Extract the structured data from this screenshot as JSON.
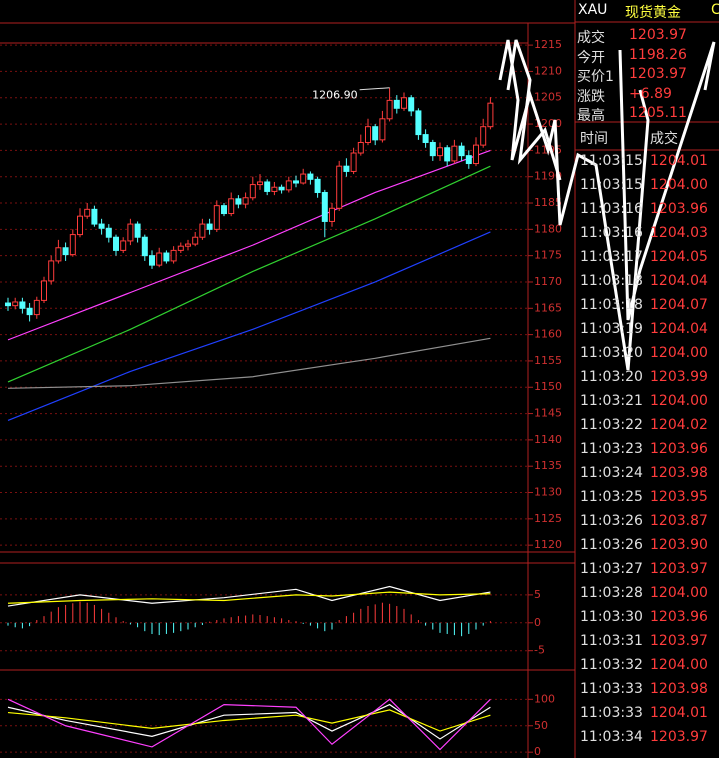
{
  "chart_data": [
    {
      "type": "candlestick",
      "up_color": "#ff3c3c",
      "down_color": "#54ffff",
      "ylim": [
        1118.7,
        1219.2
      ],
      "yticks": [
        1120,
        1125,
        1130,
        1135,
        1140,
        1145,
        1150,
        1155,
        1160,
        1165,
        1170,
        1175,
        1180,
        1185,
        1190,
        1195,
        1200,
        1205,
        1210,
        1215
      ],
      "open": [
        1166.0,
        1165.5,
        1166.2,
        1165.0,
        1163.8,
        1166.5,
        1170.2,
        1174.0,
        1176.5,
        1175.2,
        1179.0,
        1182.5,
        1183.8,
        1181.0,
        1180.2,
        1178.5,
        1176.0,
        1177.8,
        1181.0,
        1178.5,
        1175.0,
        1173.2,
        1175.5,
        1174.0,
        1176.0,
        1176.8,
        1177.2,
        1178.5,
        1181.0,
        1180.0,
        1184.5,
        1183.0,
        1185.8,
        1184.8,
        1186.0,
        1188.5,
        1189.0,
        1187.2,
        1188.0,
        1187.5,
        1189.2,
        1188.8,
        1190.5,
        1189.5,
        1187.0,
        1181.5,
        1184.0,
        1192.0,
        1191.0,
        1194.5,
        1196.5,
        1199.5,
        1197.0,
        1201.0,
        1204.5,
        1203.0,
        1205.0,
        1202.5,
        1198.0,
        1196.5,
        1194.0,
        1195.5,
        1193.0,
        1195.8,
        1194.0,
        1192.5,
        1196.0,
        1199.5
      ],
      "high": [
        1167.0,
        1167.0,
        1167.0,
        1166.0,
        1167.2,
        1171.0,
        1175.0,
        1178.0,
        1177.5,
        1180.0,
        1184.0,
        1185.0,
        1184.5,
        1182.0,
        1181.0,
        1179.0,
        1178.5,
        1182.0,
        1181.5,
        1179.0,
        1176.0,
        1176.5,
        1176.0,
        1176.8,
        1177.5,
        1178.0,
        1179.5,
        1182.0,
        1182.0,
        1185.5,
        1185.0,
        1187.0,
        1186.5,
        1187.0,
        1190.0,
        1190.5,
        1189.5,
        1189.0,
        1188.5,
        1190.0,
        1190.2,
        1191.5,
        1191.0,
        1190.0,
        1187.5,
        1185.0,
        1193.0,
        1193.5,
        1195.5,
        1198.0,
        1201.0,
        1200.0,
        1202.5,
        1206.9,
        1205.5,
        1206.0,
        1205.5,
        1203.0,
        1199.0,
        1197.0,
        1196.5,
        1196.0,
        1197.0,
        1196.5,
        1195.0,
        1197.5,
        1201.0,
        1205.11
      ],
      "low": [
        1164.5,
        1164.8,
        1164.0,
        1162.5,
        1163.0,
        1166.0,
        1169.5,
        1173.5,
        1174.0,
        1174.8,
        1178.5,
        1182.0,
        1180.5,
        1179.0,
        1177.5,
        1175.0,
        1175.5,
        1177.0,
        1177.5,
        1174.0,
        1172.5,
        1172.8,
        1173.5,
        1173.5,
        1175.5,
        1176.0,
        1176.8,
        1178.0,
        1179.0,
        1179.5,
        1182.5,
        1182.5,
        1184.0,
        1184.0,
        1185.5,
        1187.5,
        1186.5,
        1186.5,
        1186.8,
        1187.0,
        1188.0,
        1188.5,
        1188.5,
        1186.0,
        1178.5,
        1180.5,
        1183.5,
        1190.0,
        1190.5,
        1194.0,
        1196.0,
        1196.0,
        1196.5,
        1200.5,
        1202.0,
        1202.5,
        1201.5,
        1197.0,
        1195.5,
        1193.0,
        1193.0,
        1192.0,
        1192.5,
        1193.0,
        1191.5,
        1192.0,
        1195.5,
        1199.0
      ],
      "close": [
        1165.5,
        1166.2,
        1165.0,
        1163.8,
        1166.5,
        1170.2,
        1174.0,
        1176.5,
        1175.2,
        1179.0,
        1182.5,
        1183.8,
        1181.0,
        1180.2,
        1178.5,
        1176.0,
        1177.8,
        1181.0,
        1178.5,
        1175.0,
        1173.2,
        1175.5,
        1174.0,
        1176.0,
        1176.8,
        1177.2,
        1178.5,
        1181.0,
        1180.0,
        1184.5,
        1183.0,
        1185.8,
        1184.8,
        1186.0,
        1188.5,
        1189.0,
        1187.2,
        1188.0,
        1187.5,
        1189.2,
        1188.8,
        1190.5,
        1189.5,
        1187.0,
        1181.5,
        1184.0,
        1192.0,
        1191.0,
        1194.5,
        1196.5,
        1199.5,
        1197.0,
        1201.0,
        1204.5,
        1203.0,
        1205.0,
        1202.5,
        1198.0,
        1196.5,
        1194.0,
        1195.5,
        1193.0,
        1195.8,
        1194.0,
        1192.5,
        1196.0,
        1199.5,
        1203.97
      ],
      "series": [
        {
          "color": "#ff40ff",
          "x": [
            0,
            17,
            34,
            51,
            67
          ],
          "values": [
            1159,
            1168,
            1177,
            1187,
            1195
          ]
        },
        {
          "color": "#30d030",
          "x": [
            0,
            17,
            34,
            51,
            67
          ],
          "values": [
            1151,
            1161,
            1172,
            1182,
            1192
          ]
        },
        {
          "color": "#2040ff",
          "x": [
            0,
            17,
            34,
            51,
            67
          ],
          "values": [
            1143.7,
            1153,
            1161,
            1170,
            1179.5
          ]
        },
        {
          "color": "#909090",
          "x": [
            0,
            17,
            34,
            51,
            67
          ],
          "values": [
            1149.8,
            1150.3,
            1152,
            1155.5,
            1159.3
          ]
        }
      ],
      "annotation": {
        "index": 53,
        "value": 1206.9,
        "label": "1206.90"
      }
    },
    {
      "type": "macd",
      "ylim": [
        -8.1,
        9.1
      ],
      "yticks": [
        5,
        0,
        -5
      ],
      "histogram": [
        -0.5,
        -0.8,
        -1,
        -0.6,
        0.5,
        1.2,
        2,
        2.8,
        3.2,
        3.5,
        3.8,
        3.6,
        3.2,
        2.5,
        1.8,
        1,
        0.3,
        -0.3,
        -0.8,
        -1.5,
        -2,
        -2.2,
        -2,
        -1.8,
        -1.5,
        -1.2,
        -0.8,
        -0.4,
        0.2,
        0.5,
        0.8,
        1,
        1.2,
        1.3,
        1.5,
        1.4,
        1.2,
        1,
        0.8,
        0.5,
        0.3,
        -0.2,
        -0.5,
        -1,
        -1.5,
        -1.2,
        0.5,
        1.2,
        1.8,
        2.5,
        3,
        3.3,
        3.6,
        3.4,
        3,
        2.5,
        1.5,
        0.5,
        -0.5,
        -1.2,
        -1.8,
        -2,
        -2.2,
        -2.4,
        -2,
        -1.2,
        -0.5,
        0.3
      ],
      "series": [
        {
          "color": "#ffffff",
          "x": [
            0,
            10,
            20,
            30,
            40,
            45,
            53,
            60,
            67
          ],
          "values": [
            3,
            5,
            3.5,
            4.5,
            6,
            4,
            6.5,
            4,
            5.5
          ]
        },
        {
          "color": "#ffff00",
          "x": [
            0,
            10,
            20,
            30,
            40,
            45,
            53,
            60,
            67
          ],
          "values": [
            3.5,
            4,
            4.3,
            4,
            5,
            4.8,
            5.5,
            5,
            5.2
          ]
        }
      ]
    },
    {
      "type": "line",
      "ylim": [
        -11,
        146
      ],
      "yticks": [
        100,
        50,
        0
      ],
      "series": [
        {
          "color": "#ffffff",
          "x": [
            0,
            8,
            20,
            30,
            40,
            45,
            53,
            60,
            67
          ],
          "values": [
            85,
            60,
            30,
            70,
            75,
            40,
            90,
            25,
            85
          ]
        },
        {
          "color": "#ffff00",
          "x": [
            0,
            8,
            20,
            30,
            40,
            45,
            53,
            60,
            67
          ],
          "values": [
            75,
            65,
            45,
            60,
            70,
            55,
            80,
            40,
            70
          ]
        },
        {
          "color": "#ff40ff",
          "x": [
            0,
            8,
            20,
            30,
            40,
            45,
            53,
            60,
            67
          ],
          "values": [
            100,
            50,
            10,
            90,
            85,
            15,
            100,
            5,
            100
          ]
        }
      ]
    }
  ],
  "quote_panel": {
    "symbol": "XAU",
    "name": "现货黄金",
    "extra": "C",
    "fields": [
      [
        "成交",
        "1203.97"
      ],
      [
        "今开",
        "1198.26"
      ],
      [
        "买价1",
        "1203.97"
      ],
      [
        "涨跌",
        "+6.89"
      ],
      [
        "最高",
        "1205.11"
      ]
    ],
    "ticks_header": [
      "时间",
      "成交"
    ],
    "ticks": [
      [
        "11:03:15",
        "1204.01"
      ],
      [
        "11:03:15",
        "1204.00"
      ],
      [
        "11:03:16",
        "1203.96"
      ],
      [
        "11:03:16",
        "1204.03"
      ],
      [
        "11:03:17",
        "1204.05"
      ],
      [
        "11:03:18",
        "1204.04"
      ],
      [
        "11:03:18",
        "1204.07"
      ],
      [
        "11:03:19",
        "1204.04"
      ],
      [
        "11:03:20",
        "1204.00"
      ],
      [
        "11:03:20",
        "1203.99"
      ],
      [
        "11:03:21",
        "1204.00"
      ],
      [
        "11:03:22",
        "1204.02"
      ],
      [
        "11:03:23",
        "1203.96"
      ],
      [
        "11:03:24",
        "1203.98"
      ],
      [
        "11:03:25",
        "1203.95"
      ],
      [
        "11:03:26",
        "1203.87"
      ],
      [
        "11:03:26",
        "1203.90"
      ],
      [
        "11:03:27",
        "1203.97"
      ],
      [
        "11:03:28",
        "1204.00"
      ],
      [
        "11:03:30",
        "1203.96"
      ],
      [
        "11:03:31",
        "1203.97"
      ],
      [
        "11:03:32",
        "1204.00"
      ],
      [
        "11:03:33",
        "1203.98"
      ],
      [
        "11:03:33",
        "1204.01"
      ],
      [
        "11:03:34",
        "1203.97"
      ]
    ]
  }
}
